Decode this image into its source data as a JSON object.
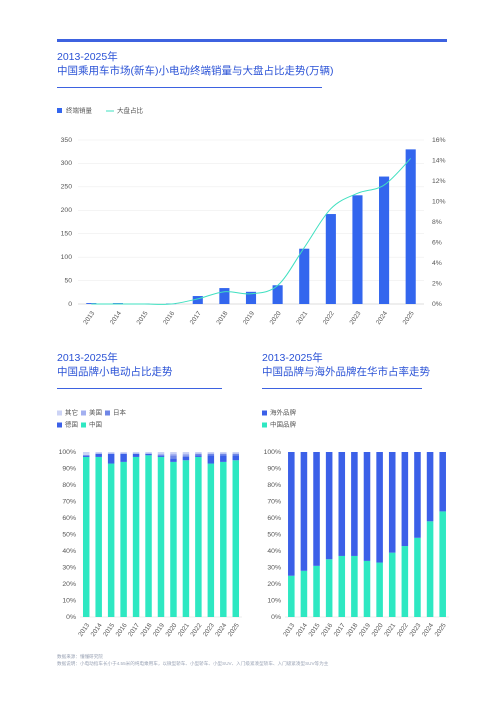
{
  "chart_data": [
    {
      "type": "bar",
      "title_line1": "2013-2025年",
      "title_line2": "中国乘用车市场(新车)小电动终端销量与大盘占比走势(万辆)",
      "categories": [
        "2013",
        "2014",
        "2015",
        "2016",
        "2017",
        "2018",
        "2019",
        "2020",
        "2021",
        "2022",
        "2023",
        "2024",
        "2025"
      ],
      "series": [
        {
          "name": "终端销量",
          "kind": "bar",
          "axis": "left",
          "values": [
            2,
            2,
            1,
            1,
            17,
            34,
            26,
            40,
            118,
            192,
            232,
            272,
            330
          ]
        },
        {
          "name": "大盘占比",
          "kind": "line",
          "axis": "right",
          "values": [
            0.0,
            0.0,
            0.0,
            0.0,
            0.5,
            1.2,
            1.0,
            1.8,
            5.5,
            9.3,
            10.8,
            11.6,
            14.2
          ]
        }
      ],
      "ylim": [
        0,
        350
      ],
      "yticks": [
        0,
        50,
        100,
        150,
        200,
        250,
        300,
        350
      ],
      "y2lim": [
        0,
        16
      ],
      "y2ticks": [
        "0%",
        "2%",
        "4%",
        "6%",
        "8%",
        "10%",
        "12%",
        "14%",
        "16%"
      ],
      "colors": {
        "bar": "#3366ee",
        "line": "#3fe0c0"
      }
    },
    {
      "type": "bar",
      "stacked": true,
      "title_line1": "2013-2025年",
      "title_line2": "中国品牌小电动占比走势",
      "categories": [
        "2013",
        "2014",
        "2015",
        "2016",
        "2017",
        "2018",
        "2019",
        "2020",
        "2021",
        "2022",
        "2023",
        "2024",
        "2025"
      ],
      "series": [
        {
          "name": "中国",
          "color": "#2ee8c2",
          "values": [
            97,
            97,
            93,
            94,
            97,
            98,
            97,
            94,
            95,
            97,
            93,
            94,
            95
          ]
        },
        {
          "name": "德国",
          "color": "#3b60e8",
          "values": [
            1,
            2,
            6,
            5,
            2,
            1,
            1,
            2,
            2,
            1,
            5,
            4,
            3
          ]
        },
        {
          "name": "日本",
          "color": "#6f86e6",
          "values": [
            0,
            0,
            0,
            0,
            0,
            0,
            0,
            2,
            1,
            1,
            1,
            1,
            1
          ]
        },
        {
          "name": "美国",
          "color": "#a3b0f0",
          "values": [
            0,
            0,
            0,
            0,
            0,
            0,
            1,
            1,
            1,
            0,
            0,
            0,
            0
          ]
        },
        {
          "name": "其它",
          "color": "#ccd3f5",
          "values": [
            2,
            1,
            1,
            1,
            1,
            1,
            1,
            1,
            1,
            1,
            1,
            1,
            1
          ]
        }
      ],
      "legend_order": [
        "其它",
        "美国",
        "日本",
        "德国",
        "中国"
      ],
      "ylim": [
        0,
        100
      ],
      "yticks": [
        "0%",
        "10%",
        "20%",
        "30%",
        "40%",
        "50%",
        "60%",
        "70%",
        "80%",
        "90%",
        "100%"
      ]
    },
    {
      "type": "bar",
      "stacked": true,
      "title_line1": "2013-2025年",
      "title_line2": "中国品牌与海外品牌在华市占率走势",
      "categories": [
        "2013",
        "2014",
        "2015",
        "2016",
        "2017",
        "2018",
        "2019",
        "2020",
        "2021",
        "2022",
        "2023",
        "2024",
        "2025"
      ],
      "series": [
        {
          "name": "中国品牌",
          "color": "#2ee8c2",
          "values": [
            25,
            28,
            31,
            35,
            37,
            37,
            34,
            33,
            39,
            43,
            48,
            58,
            64
          ]
        },
        {
          "name": "海外品牌",
          "color": "#3b60e8",
          "values": [
            75,
            72,
            69,
            65,
            63,
            63,
            66,
            67,
            61,
            57,
            52,
            42,
            36
          ]
        }
      ],
      "legend_order": [
        "海外品牌",
        "中国品牌"
      ],
      "ylim": [
        0,
        100
      ],
      "yticks": [
        "0%",
        "10%",
        "20%",
        "30%",
        "40%",
        "50%",
        "60%",
        "70%",
        "80%",
        "90%",
        "100%"
      ]
    }
  ],
  "footer": {
    "source": "数据来源：懂懂研究院",
    "note": "数据说明：小电动指车长小于4.55米的纯电乘用车，以微型轿车、小型轿车、小型SUV、入门级紧凑型轿车、入门级紧凑型SUV等为主"
  }
}
